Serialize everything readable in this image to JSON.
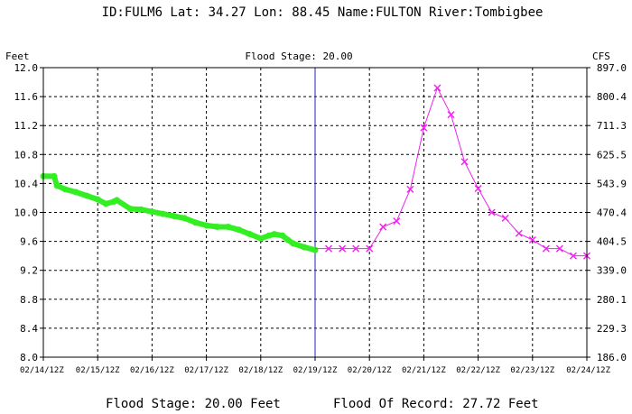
{
  "header": {
    "station": "ID:FULM6 Lat: 34.27 Lon: 88.45 Name:FULTON River:Tombigbee"
  },
  "footer": {
    "flood_stage": "Flood Stage: 20.00 Feet",
    "flood_of_record": "Flood Of Record: 27.72 Feet"
  },
  "colors": {
    "observed": "#33ee22",
    "forecast": "#ee22ee",
    "now_line": "#2222cc",
    "grid": "#000000"
  },
  "chart_data": {
    "type": "line",
    "title": "Flood Stage: 20.00",
    "ylabel": "Feet",
    "y2label": "CFS",
    "ylim": [
      8.0,
      12.0
    ],
    "yticks": [
      "12.0",
      "11.6",
      "11.2",
      "10.8",
      "10.4",
      "10.0",
      "9.6",
      "9.2",
      "8.8",
      "8.4",
      "8.0"
    ],
    "y2ticks": [
      "897.0",
      "800.4",
      "711.3",
      "625.5",
      "543.9",
      "470.4",
      "404.5",
      "339.0",
      "280.1",
      "229.3",
      "186.0"
    ],
    "xlim_days": [
      0,
      10
    ],
    "xticks": [
      "02/14/12Z",
      "02/15/12Z",
      "02/16/12Z",
      "02/17/12Z",
      "02/18/12Z",
      "02/19/12Z",
      "02/20/12Z",
      "02/21/12Z",
      "02/22/12Z",
      "02/23/12Z",
      "02/24/12Z"
    ],
    "now_day": 5,
    "grid": true,
    "series": [
      {
        "key": "observed",
        "x": [
          0.0,
          0.2,
          0.25,
          0.4,
          0.6,
          0.8,
          1.0,
          1.15,
          1.3,
          1.35,
          1.6,
          1.8,
          2.0,
          2.2,
          2.4,
          2.6,
          2.8,
          3.0,
          3.2,
          3.4,
          3.6,
          3.8,
          4.0,
          4.15,
          4.25,
          4.4,
          4.5,
          4.6,
          4.8,
          5.0
        ],
        "values": [
          10.5,
          10.5,
          10.37,
          10.32,
          10.28,
          10.23,
          10.18,
          10.12,
          10.15,
          10.17,
          10.05,
          10.04,
          10.01,
          9.98,
          9.95,
          9.92,
          9.86,
          9.82,
          9.8,
          9.8,
          9.76,
          9.7,
          9.64,
          9.68,
          9.7,
          9.68,
          9.62,
          9.57,
          9.52,
          9.48
        ]
      },
      {
        "key": "forecast",
        "x": [
          5.25,
          5.5,
          5.75,
          6.0,
          6.25,
          6.5,
          6.75,
          7.0,
          7.25,
          7.5,
          7.75,
          8.0,
          8.25,
          8.5,
          8.75,
          9.0,
          9.25,
          9.5,
          9.75,
          10.0
        ],
        "values": [
          9.5,
          9.5,
          9.5,
          9.5,
          9.8,
          9.88,
          10.32,
          11.17,
          11.72,
          11.35,
          10.7,
          10.33,
          10.0,
          9.92,
          9.71,
          9.62,
          9.5,
          9.5,
          9.4,
          9.4
        ]
      }
    ]
  }
}
